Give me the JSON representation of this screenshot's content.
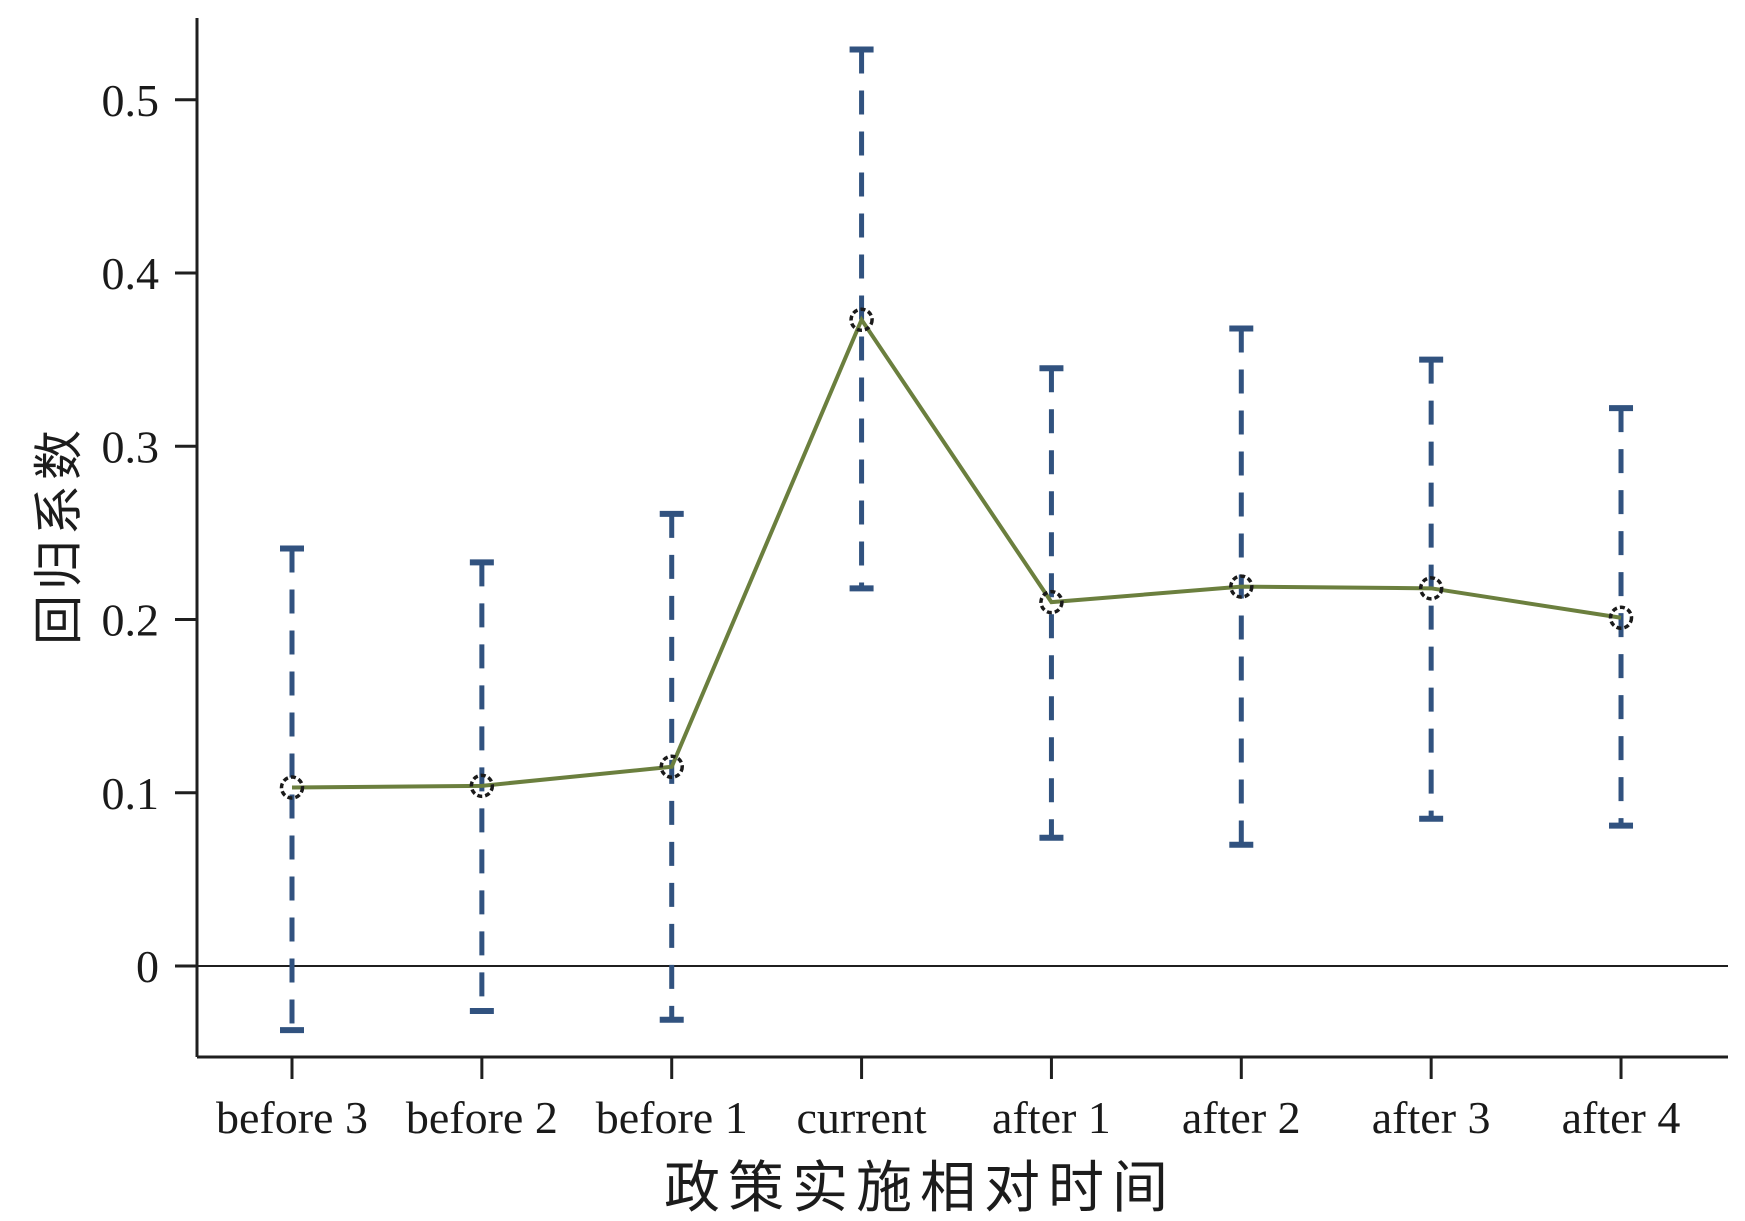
{
  "chart_data": {
    "type": "line",
    "title": "",
    "xlabel": "政策实施相对时间",
    "ylabel": "回归系数",
    "categories": [
      "before 3",
      "before 2",
      "before 1",
      "current",
      "after 1",
      "after 2",
      "after 3",
      "after 4"
    ],
    "series": [
      {
        "name": "回归系数",
        "values": [
          0.103,
          0.104,
          0.115,
          0.373,
          0.21,
          0.219,
          0.218,
          0.201
        ]
      }
    ],
    "error_bars": {
      "lower": [
        -0.037,
        -0.026,
        -0.031,
        0.218,
        0.074,
        0.07,
        0.085,
        0.081
      ],
      "upper": [
        0.241,
        0.233,
        0.261,
        0.529,
        0.345,
        0.368,
        0.35,
        0.322
      ]
    },
    "yticks": [
      0,
      0.1,
      0.2,
      0.3,
      0.4,
      0.5
    ],
    "ytick_labels": [
      "0",
      "0.1",
      "0.2",
      "0.3",
      "0.4",
      "0.5"
    ],
    "ylim": [
      -0.053,
      0.547
    ],
    "grid": false,
    "legend": "none",
    "zero_line": true,
    "marker": "open-circle",
    "line_style": "solid",
    "error_bar_style": "dashed-with-caps",
    "colors": {
      "line": "#6b7f3e",
      "error_bar": "#31527f",
      "marker_outline": "#1a1a1a",
      "axis": "#1f1f1f",
      "tick_text": "#1a1a1a",
      "background": "#ffffff"
    }
  }
}
